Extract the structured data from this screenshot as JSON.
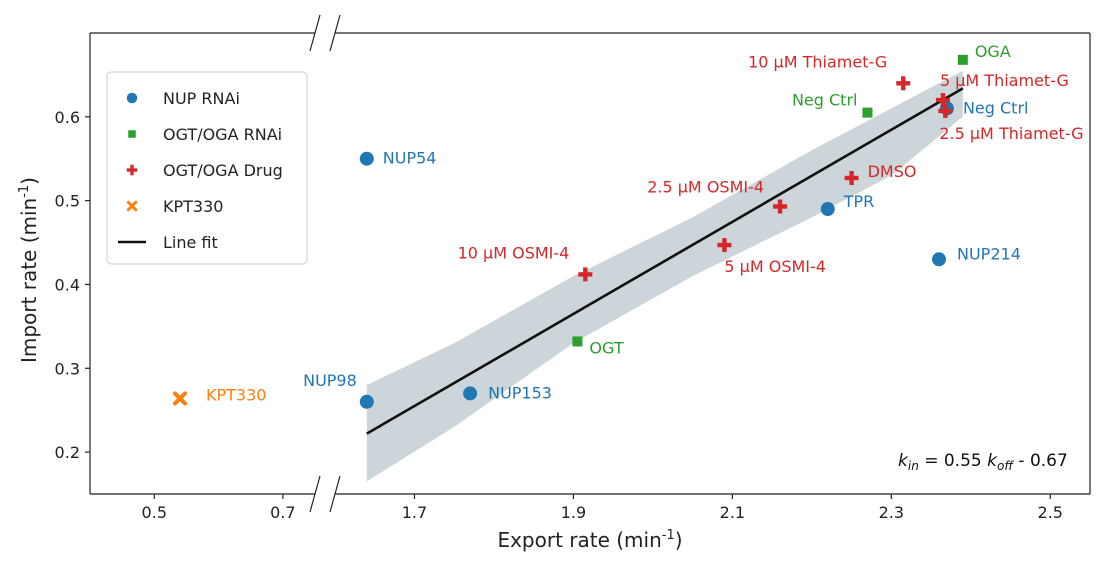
{
  "chart_data": {
    "type": "scatter",
    "xlabel": "Export rate (min",
    "xlabel_sup": "-1",
    "xlabel_end": ")",
    "ylabel": "Import rate (min",
    "ylabel_sup": "-1",
    "ylabel_end": ")",
    "x_axis": {
      "broken": true,
      "segment1": {
        "range": [
          0.4,
          0.75
        ],
        "ticks": [
          0.5,
          0.7
        ]
      },
      "segment2": {
        "range": [
          1.6,
          2.55
        ],
        "ticks": [
          1.7,
          1.9,
          2.1,
          2.3,
          2.5
        ]
      }
    },
    "y_axis": {
      "range": [
        0.15,
        0.7
      ],
      "ticks": [
        0.2,
        0.3,
        0.4,
        0.5,
        0.6
      ]
    },
    "colors": {
      "NUP RNAi": "#1f77b4",
      "OGT/OGA RNAi": "#2ca02c",
      "OGT/OGA Drug": "#d62728",
      "KPT330": "#ff7f0e",
      "Line fit": "#111111",
      "ci_band": "#ccd5d9"
    },
    "legend": {
      "position": "top-left",
      "entries": [
        {
          "label": "NUP RNAi",
          "marker": "circle",
          "group": "NUP RNAi"
        },
        {
          "label": "OGT/OGA RNAi",
          "marker": "square",
          "group": "OGT/OGA RNAi"
        },
        {
          "label": "OGT/OGA Drug",
          "marker": "plus",
          "group": "OGT/OGA Drug"
        },
        {
          "label": "KPT330",
          "marker": "x",
          "group": "KPT330"
        },
        {
          "label": "Line fit",
          "marker": "line",
          "group": "Line fit"
        }
      ]
    },
    "points": [
      {
        "group": "NUP RNAi",
        "label": "NUP54",
        "x": 1.64,
        "y": 0.55
      },
      {
        "group": "NUP RNAi",
        "label": "NUP98",
        "x": 1.64,
        "y": 0.26
      },
      {
        "group": "NUP RNAi",
        "label": "NUP153",
        "x": 1.77,
        "y": 0.27
      },
      {
        "group": "NUP RNAi",
        "label": "TPR",
        "x": 2.22,
        "y": 0.49
      },
      {
        "group": "NUP RNAi",
        "label": "NUP214",
        "x": 2.36,
        "y": 0.43
      },
      {
        "group": "NUP RNAi",
        "label": "Neg Ctrl",
        "x": 2.37,
        "y": 0.61
      },
      {
        "group": "OGT/OGA RNAi",
        "label": "OGA",
        "x": 2.39,
        "y": 0.668
      },
      {
        "group": "OGT/OGA RNAi",
        "label": "Neg Ctrl",
        "x": 2.27,
        "y": 0.605
      },
      {
        "group": "OGT/OGA RNAi",
        "label": "OGT",
        "x": 1.905,
        "y": 0.332
      },
      {
        "group": "OGT/OGA Drug",
        "label": "10 μM Thiamet-G",
        "x": 2.315,
        "y": 0.64
      },
      {
        "group": "OGT/OGA Drug",
        "label": "5 μM Thiamet-G",
        "x": 2.365,
        "y": 0.62
      },
      {
        "group": "OGT/OGA Drug",
        "label": "2.5 μM Thiamet-G",
        "x": 2.368,
        "y": 0.607
      },
      {
        "group": "OGT/OGA Drug",
        "label": "DMSO",
        "x": 2.25,
        "y": 0.527
      },
      {
        "group": "OGT/OGA Drug",
        "label": "2.5 μM OSMI-4",
        "x": 2.16,
        "y": 0.493
      },
      {
        "group": "OGT/OGA Drug",
        "label": "5 μM OSMI-4",
        "x": 2.09,
        "y": 0.447
      },
      {
        "group": "OGT/OGA Drug",
        "label": "10 μM OSMI-4",
        "x": 1.915,
        "y": 0.412
      },
      {
        "group": "KPT330",
        "label": "KPT330",
        "x": 0.54,
        "y": 0.264
      }
    ],
    "fit": {
      "x": [
        1.64,
        2.39
      ],
      "y": [
        0.222,
        0.634
      ]
    },
    "ci_band": {
      "x": [
        1.64,
        1.75,
        1.9,
        2.05,
        2.2,
        2.3,
        2.39
      ],
      "upper": [
        0.28,
        0.33,
        0.41,
        0.48,
        0.56,
        0.61,
        0.655
      ],
      "lower": [
        0.165,
        0.23,
        0.33,
        0.41,
        0.48,
        0.53,
        0.6
      ]
    },
    "equation": {
      "k1": "k",
      "sub1": "in",
      "mid": " = 0.55 ",
      "k2": "k",
      "sub2": "off",
      "end": " - 0.67"
    }
  }
}
